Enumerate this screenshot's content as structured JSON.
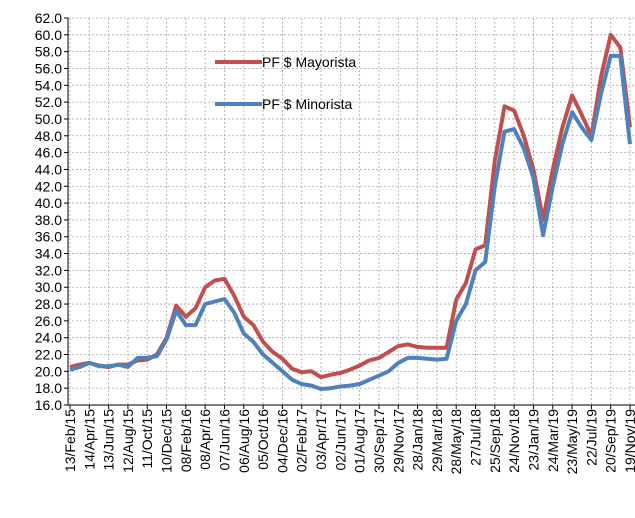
{
  "chart_data": {
    "type": "line",
    "categories": [
      "13/Feb/15",
      null,
      "14/Apr/15",
      null,
      "13/Jun/15",
      null,
      "12/Aug/15",
      null,
      "11/Oct/15",
      null,
      "10/Dec/15",
      null,
      "08/Feb/16",
      null,
      "08/Apr/16",
      null,
      "07/Jun/16",
      null,
      "06/Aug/16",
      null,
      "05/Oct/16",
      null,
      "04/Dec/16",
      null,
      "02/Feb/17",
      null,
      "03/Apr/17",
      null,
      "02/Jun/17",
      null,
      "01/Aug/17",
      null,
      "30/Sep/17",
      null,
      "29/Nov/17",
      null,
      "28/Jan/18",
      null,
      "29/Mar/18",
      null,
      "28/May/18",
      null,
      "27/Jul/18",
      null,
      "25/Sep/18",
      null,
      "24/Nov/18",
      null,
      "23/Jan/19",
      null,
      "24/Mar/19",
      null,
      "23/May/19",
      null,
      "22/Jul/19",
      null,
      "20/Sep/19",
      null,
      "19/Nov/19"
    ],
    "series": [
      {
        "name": "PF $ Mayorista",
        "color": "#c0504d",
        "values": [
          20.5,
          20.8,
          21.0,
          20.7,
          20.5,
          20.8,
          20.8,
          21.3,
          21.4,
          22.0,
          24.0,
          27.8,
          26.5,
          27.5,
          30.0,
          30.8,
          31.0,
          29.0,
          26.5,
          25.5,
          23.5,
          22.3,
          21.5,
          20.3,
          19.9,
          20.0,
          19.3,
          19.6,
          19.8,
          20.2,
          20.7,
          21.3,
          21.6,
          22.3,
          23.0,
          23.2,
          22.9,
          22.8,
          22.8,
          22.8,
          28.5,
          30.5,
          34.5,
          35.0,
          45.0,
          51.5,
          51.0,
          48.0,
          44.0,
          38.0,
          44.0,
          49.0,
          52.8,
          50.5,
          48.0,
          55.0,
          60.0,
          58.5,
          49.0
        ]
      },
      {
        "name": "PF $ Minorista",
        "color": "#4f81bd",
        "values": [
          20.2,
          20.5,
          21.0,
          20.6,
          20.6,
          20.8,
          20.5,
          21.6,
          21.6,
          21.8,
          23.8,
          27.2,
          25.5,
          25.5,
          28.0,
          28.3,
          28.6,
          27.0,
          24.5,
          23.5,
          22.0,
          21.0,
          20.0,
          19.0,
          18.5,
          18.3,
          17.9,
          18.0,
          18.2,
          18.3,
          18.5,
          19.0,
          19.5,
          20.0,
          21.0,
          21.6,
          21.6,
          21.5,
          21.4,
          21.5,
          26.0,
          28.0,
          32.0,
          33.0,
          42.0,
          48.5,
          48.8,
          46.5,
          43.0,
          36.2,
          42.0,
          47.0,
          50.8,
          49.0,
          47.5,
          53.0,
          57.5,
          57.5,
          47.0
        ]
      }
    ],
    "ylim": [
      16,
      62
    ],
    "yticks": [
      {
        "value": 16,
        "label": "16.0"
      },
      {
        "value": 18,
        "label": "18.0"
      },
      {
        "value": 20,
        "label": "20.0"
      },
      {
        "value": 22,
        "label": "22.0"
      },
      {
        "value": 24,
        "label": "24.0"
      },
      {
        "value": 26,
        "label": "26.0"
      },
      {
        "value": 28,
        "label": "28.0"
      },
      {
        "value": 30,
        "label": "30.0"
      },
      {
        "value": 32,
        "label": "32.0"
      },
      {
        "value": 34,
        "label": "34.0"
      },
      {
        "value": 36,
        "label": "36.0"
      },
      {
        "value": 38,
        "label": "38.0"
      },
      {
        "value": 40,
        "label": "40.0"
      },
      {
        "value": 42,
        "label": "42.0"
      },
      {
        "value": 44,
        "label": "44.0"
      },
      {
        "value": 46,
        "label": "46.0"
      },
      {
        "value": 48,
        "label": "48.0"
      },
      {
        "value": 50,
        "label": "50.0"
      },
      {
        "value": 52,
        "label": "52.0"
      },
      {
        "value": 54,
        "label": "54.0"
      },
      {
        "value": 56,
        "label": "56.0"
      },
      {
        "value": 58,
        "label": "58.0"
      },
      {
        "value": 60,
        "label": "60.0"
      },
      {
        "value": 62,
        "label": "62.0"
      }
    ],
    "grid": true
  }
}
